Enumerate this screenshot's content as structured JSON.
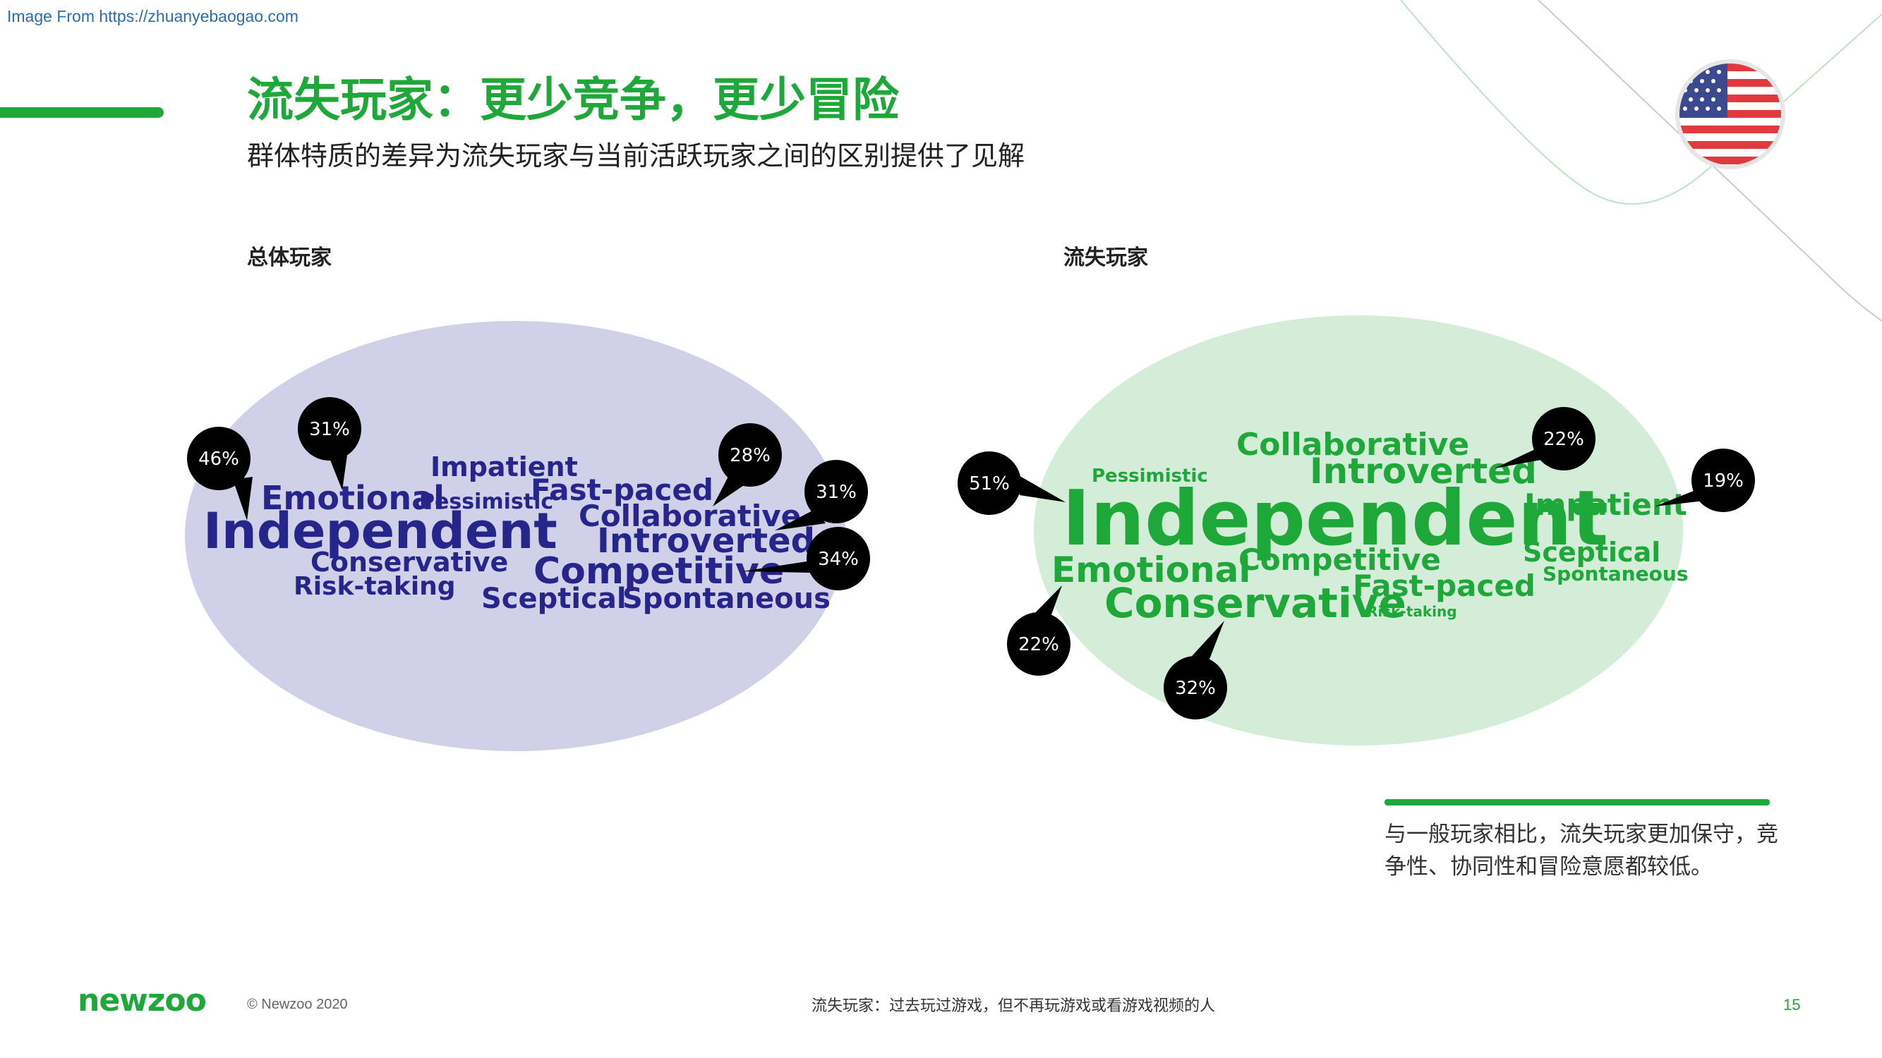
{
  "watermark": "Image From https://zhuanyebaogao.com",
  "title": "流失玩家：更少竞争，更少冒险",
  "subtitle": "群体特质的差异为流失玩家与当前活跃玩家之间的区别提供了见解",
  "colors": {
    "accent": "#1fa83a",
    "overall_cloud": "#d0d1e8",
    "overall_words": "#25258c",
    "lapsed_cloud": "#d4edd8",
    "lapsed_words": "#1fa83a",
    "bubble": "#000000"
  },
  "flag_icon": "us-flag-icon",
  "overall": {
    "label": "总体玩家",
    "words": [
      {
        "text": "Impatient",
        "size": 38
      },
      {
        "text": "Emotional",
        "size": 46
      },
      {
        "text": "Pessimistic",
        "size": 30
      },
      {
        "text": "Fast-paced",
        "size": 42
      },
      {
        "text": "Independent",
        "size": 70
      },
      {
        "text": "Collaborative",
        "size": 42
      },
      {
        "text": "Introverted",
        "size": 48
      },
      {
        "text": "Conservative",
        "size": 38
      },
      {
        "text": "Competitive",
        "size": 52
      },
      {
        "text": "Risk-taking",
        "size": 36
      },
      {
        "text": "Sceptical",
        "size": 40
      },
      {
        "text": "Spontaneous",
        "size": 40
      }
    ],
    "bubbles": [
      {
        "label": "46%",
        "word": "Independent"
      },
      {
        "label": "31%",
        "word": "Emotional"
      },
      {
        "label": "28%",
        "word": "Collaborative"
      },
      {
        "label": "31%",
        "word": "Introverted"
      },
      {
        "label": "34%",
        "word": "Competitive"
      }
    ]
  },
  "lapsed": {
    "label": "流失玩家",
    "words": [
      {
        "text": "Collaborative",
        "size": 44
      },
      {
        "text": "Introverted",
        "size": 50
      },
      {
        "text": "Pessimistic",
        "size": 26
      },
      {
        "text": "Independent",
        "size": 108
      },
      {
        "text": "Impatient",
        "size": 42
      },
      {
        "text": "Emotional",
        "size": 50
      },
      {
        "text": "Competitive",
        "size": 42
      },
      {
        "text": "Sceptical",
        "size": 38
      },
      {
        "text": "Spontaneous",
        "size": 28
      },
      {
        "text": "Conservative",
        "size": 58
      },
      {
        "text": "Fast-paced",
        "size": 42
      },
      {
        "text": "Risk-taking",
        "size": 20
      }
    ],
    "bubbles": [
      {
        "label": "51%",
        "word": "Independent"
      },
      {
        "label": "22%",
        "word": "Introverted"
      },
      {
        "label": "19%",
        "word": "Impatient"
      },
      {
        "label": "22%",
        "word": "Emotional"
      },
      {
        "label": "32%",
        "word": "Conservative"
      }
    ]
  },
  "note": "与一般玩家相比，流失玩家更加保守，竞争性、协同性和冒险意愿都较低。",
  "footer": {
    "logo": "newzoo",
    "copyright": "© Newzoo 2020",
    "footnote": "流失玩家：过去玩过游戏，但不再玩游戏或看游戏视频的人",
    "page_number": "15"
  }
}
